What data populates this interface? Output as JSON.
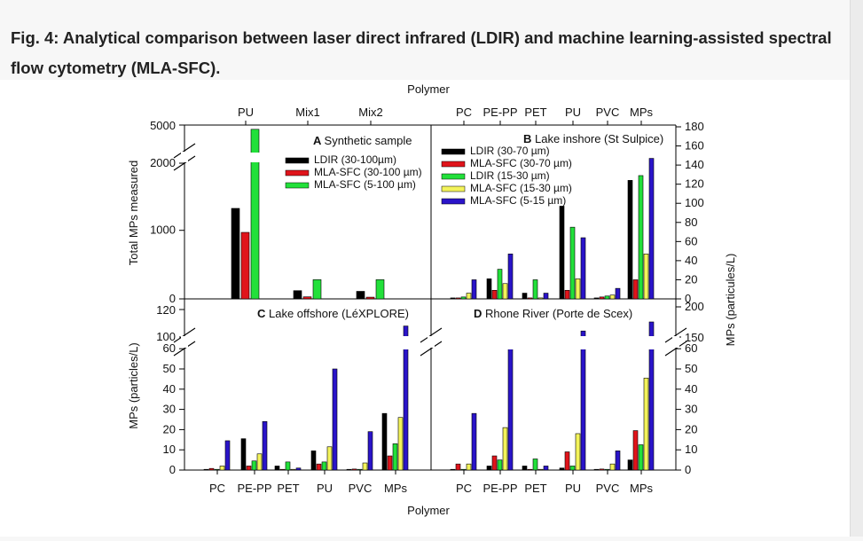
{
  "caption": "Fig. 4: Analytical comparison between laser direct infrared (LDIR) and machine learning-assisted spectral flow cytometry (MLA-SFC).",
  "colors": {
    "black": "#000000",
    "red": "#e0141b",
    "green": "#22e03a",
    "yellow": "#f3f35a",
    "blue": "#2a14c9"
  },
  "chart_data": [
    {
      "panel": "A",
      "type": "bar",
      "title": "A Synthetic sample",
      "top_axis_label": "Polymer",
      "categories": [
        "PU",
        "Mix1",
        "Mix2"
      ],
      "ylabel": "Total MPs measured",
      "y_ticks": [
        "0",
        "1000",
        "2000",
        "5000"
      ],
      "axis_break": true,
      "series": [
        {
          "name": "LDIR (30-100µm)",
          "color": "black",
          "values": [
            1320,
            120,
            110
          ]
        },
        {
          "name": "MLA-SFC (30-100 µm)",
          "color": "red",
          "values": [
            970,
            30,
            25
          ]
        },
        {
          "name": "MLA-SFC (5-100 µm)",
          "color": "green",
          "values": [
            4700,
            280,
            280
          ]
        }
      ]
    },
    {
      "panel": "B",
      "type": "bar",
      "title": "B Lake inshore (St Sulpice)",
      "categories": [
        "PC",
        "PE-PP",
        "PET",
        "PU",
        "PVC",
        "MPs"
      ],
      "y2label": "MPs (particules/L)",
      "ylim": [
        0,
        180
      ],
      "y_ticks": [
        "0",
        "20",
        "40",
        "60",
        "80",
        "100",
        "120",
        "140",
        "160",
        "180"
      ],
      "series": [
        {
          "name": "LDIR (30-70 µm)",
          "color": "black",
          "values": [
            1,
            21,
            6,
            97,
            1,
            124
          ]
        },
        {
          "name": "MLA-SFC (30-70 µm)",
          "color": "red",
          "values": [
            1,
            9,
            1,
            9,
            2,
            20
          ]
        },
        {
          "name": "LDIR (15-30 µm)",
          "color": "green",
          "values": [
            2,
            31,
            20,
            75,
            3,
            129
          ]
        },
        {
          "name": "MLA-SFC (15-30 µm)",
          "color": "yellow",
          "values": [
            6,
            16,
            1,
            21,
            4,
            47
          ]
        },
        {
          "name": "MLA-SFC (5-15 µm)",
          "color": "blue",
          "values": [
            20,
            47,
            6,
            64,
            11,
            147
          ]
        }
      ]
    },
    {
      "panel": "C",
      "type": "bar",
      "title": "C Lake offshore (LéXPLORE)",
      "categories": [
        "PC",
        "PE-PP",
        "PET",
        "PU",
        "PVC",
        "MPs"
      ],
      "ylabel": "MPs (particles/L)",
      "xlabel": "Polymer",
      "y_ticks": [
        "0",
        "10",
        "20",
        "30",
        "40",
        "50",
        "60",
        "100",
        "120"
      ],
      "axis_break": true,
      "series": [
        {
          "name": "LDIR (30-70 µm)",
          "color": "black",
          "values": [
            0.2,
            15.5,
            2,
            9.5,
            0.3,
            28
          ]
        },
        {
          "name": "MLA-SFC (30-70 µm)",
          "color": "red",
          "values": [
            0.8,
            2,
            0.3,
            3,
            0.5,
            7
          ]
        },
        {
          "name": "LDIR (15-30 µm)",
          "color": "green",
          "values": [
            0.3,
            4.5,
            4,
            4,
            0.3,
            13
          ]
        },
        {
          "name": "MLA-SFC (15-30 µm)",
          "color": "yellow",
          "values": [
            2,
            8,
            0.3,
            11.5,
            3.5,
            26
          ]
        },
        {
          "name": "MLA-SFC (5-15 µm)",
          "color": "blue",
          "values": [
            14.5,
            24,
            1,
            50,
            19,
            108
          ]
        }
      ]
    },
    {
      "panel": "D",
      "type": "bar",
      "title": "D Rhone River (Porte de Scex)",
      "categories": [
        "PC",
        "PE-PP",
        "PET",
        "PU",
        "PVC",
        "MPs"
      ],
      "y2label": "MPs (particules/L)",
      "xlabel": "Polymer",
      "y_ticks": [
        "0",
        "10",
        "20",
        "30",
        "40",
        "50",
        "60",
        "150",
        "200"
      ],
      "axis_break": true,
      "series": [
        {
          "name": "LDIR (30-70 µm)",
          "color": "black",
          "values": [
            0.2,
            2,
            2,
            1,
            0.3,
            5
          ]
        },
        {
          "name": "MLA-SFC (30-70 µm)",
          "color": "red",
          "values": [
            3,
            7,
            0.3,
            9,
            0.5,
            19.5
          ]
        },
        {
          "name": "LDIR (15-30 µm)",
          "color": "green",
          "values": [
            0.3,
            5,
            5.5,
            2,
            0.3,
            12.5
          ]
        },
        {
          "name": "MLA-SFC (15-30 µm)",
          "color": "yellow",
          "values": [
            3,
            21,
            0.3,
            18,
            3,
            45.5
          ]
        },
        {
          "name": "MLA-SFC (5-15 µm)",
          "color": "blue",
          "values": [
            28,
            130,
            2,
            160,
            9.5,
            175
          ]
        }
      ]
    }
  ]
}
